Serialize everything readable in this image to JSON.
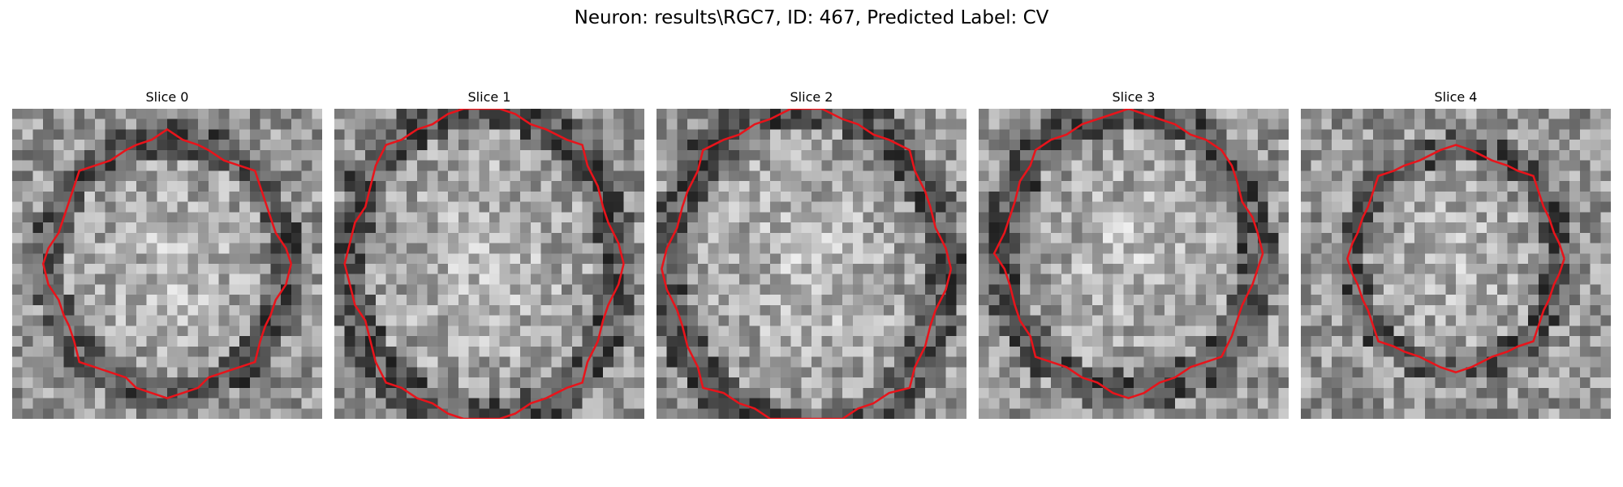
{
  "figure": {
    "title": "Neuron: results\\RGC7, ID: 467, Predicted Label: CV"
  },
  "contour_color": "#e8141b",
  "image_colormap": "gray",
  "slices": [
    {
      "label": "Slice 0"
    },
    {
      "label": "Slice 1"
    },
    {
      "label": "Slice 2"
    },
    {
      "label": "Slice 3"
    },
    {
      "label": "Slice 4"
    }
  ]
}
